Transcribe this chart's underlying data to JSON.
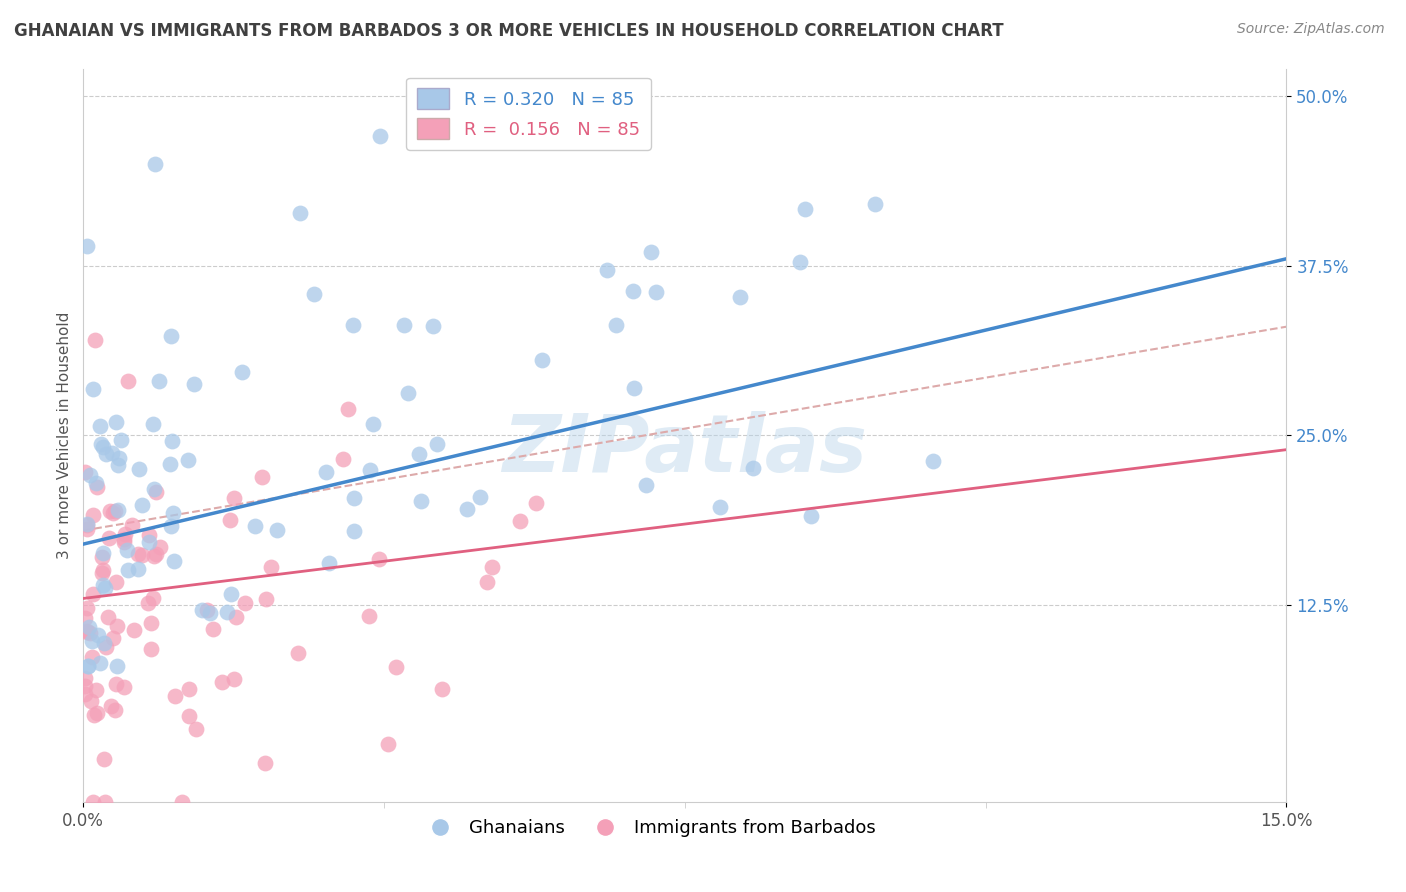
{
  "title": "GHANAIAN VS IMMIGRANTS FROM BARBADOS 3 OR MORE VEHICLES IN HOUSEHOLD CORRELATION CHART",
  "source": "Source: ZipAtlas.com",
  "ylabel": "3 or more Vehicles in Household",
  "xlim": [
    0.0,
    15.0
  ],
  "ylim": [
    -2.0,
    52.0
  ],
  "xtick_labels": [
    "0.0%",
    "15.0%"
  ],
  "yticks": [
    12.5,
    25.0,
    37.5,
    50.0
  ],
  "ytick_labels": [
    "12.5%",
    "25.0%",
    "37.5%",
    "50.0%"
  ],
  "R_blue": 0.32,
  "N_blue": 85,
  "R_pink": 0.156,
  "N_pink": 85,
  "color_blue": "#a8c8e8",
  "color_pink": "#f4a0b8",
  "color_blue_line": "#4488cc",
  "color_pink_line": "#e06080",
  "color_dashed": "#ddaaaa",
  "watermark": "ZIPatlas",
  "background_color": "#ffffff",
  "title_color": "#404040",
  "source_color": "#888888",
  "ylabel_color": "#555555",
  "ytick_color": "#4488cc",
  "grid_color": "#cccccc",
  "spine_color": "#cccccc"
}
